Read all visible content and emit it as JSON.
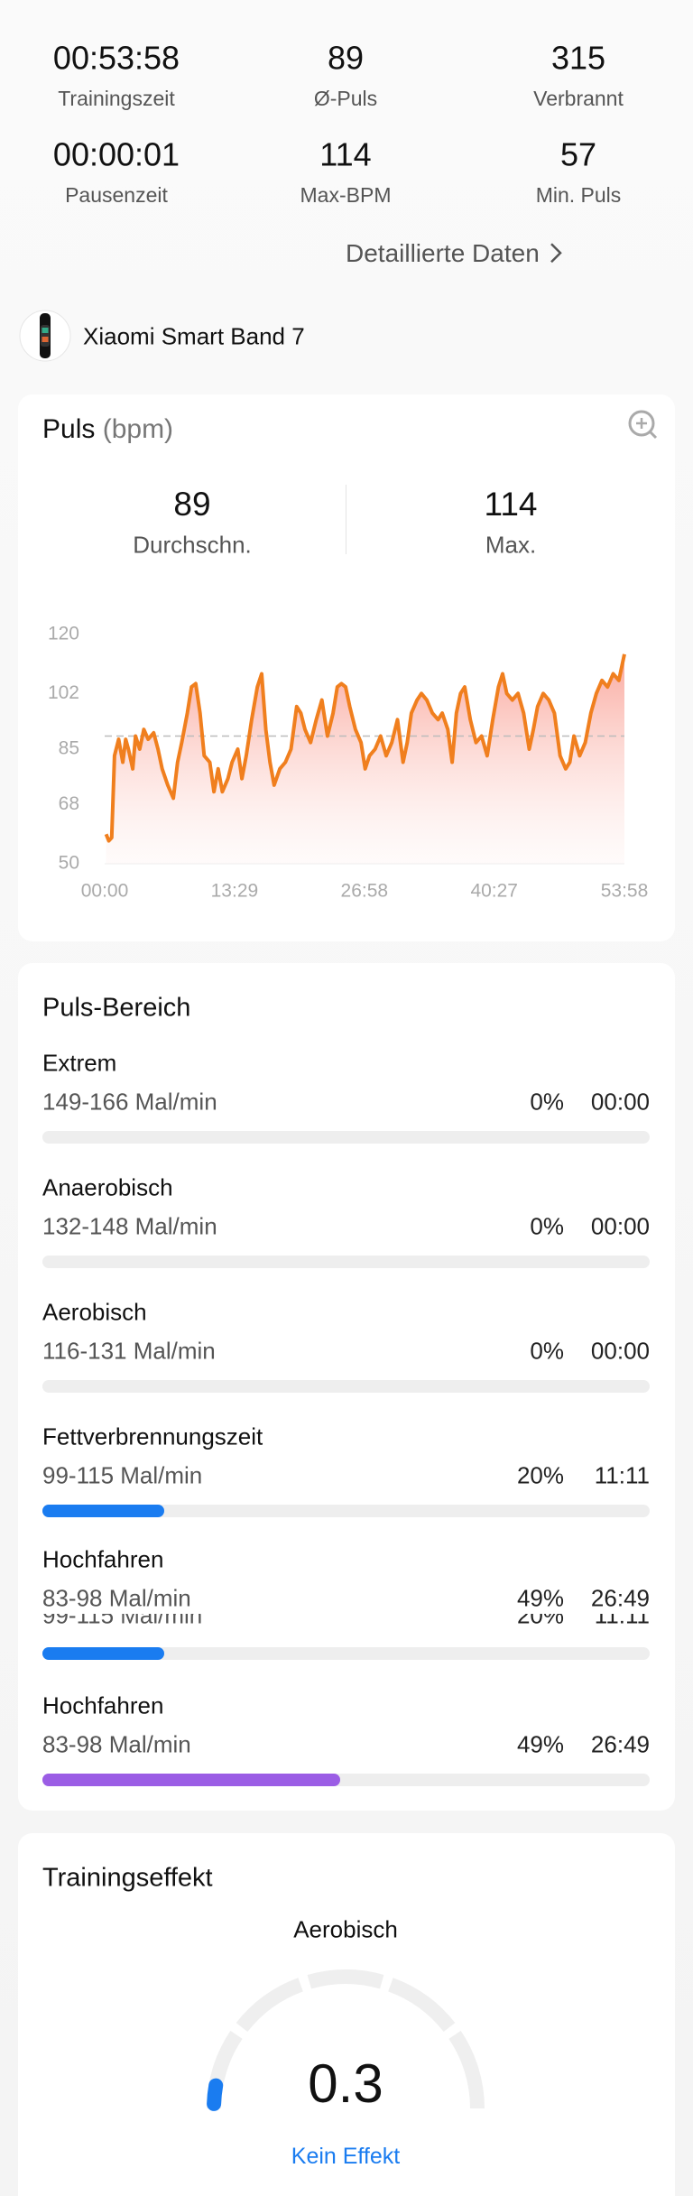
{
  "summary": {
    "items": [
      {
        "value": "00:53:58",
        "label": "Trainingszeit"
      },
      {
        "value": "89",
        "label": "Ø-Puls"
      },
      {
        "value": "315",
        "label": "Verbrannt"
      },
      {
        "value": "00:00:01",
        "label": "Pausenzeit"
      },
      {
        "value": "114",
        "label": "Max-BPM"
      },
      {
        "value": "57",
        "label": "Min. Puls"
      }
    ]
  },
  "details_link": "Detaillierte Daten",
  "device": "Xiaomi Smart Band 7",
  "heart_rate": {
    "title": "Puls",
    "unit": "(bpm)",
    "stats": [
      {
        "value": 89,
        "label": "Durchschn."
      },
      {
        "value": 114,
        "label": "Max."
      }
    ]
  },
  "chart_data": {
    "type": "line",
    "x": [
      9,
      26,
      44,
      61,
      87,
      113,
      131,
      148,
      175,
      192,
      218,
      244,
      271,
      305,
      332,
      358,
      393,
      428,
      454,
      480,
      515,
      541,
      567,
      594,
      620,
      655,
      681,
      707,
      733,
      768,
      794,
      829,
      855,
      882,
      916,
      951,
      978,
      1004,
      1030,
      1056,
      1091,
      1126,
      1161,
      1196,
      1222,
      1248,
      1283,
      1318,
      1353,
      1388,
      1423,
      1449,
      1475,
      1501,
      1527,
      1562,
      1597,
      1623,
      1650,
      1685,
      1719,
      1754,
      1789,
      1824,
      1859,
      1885,
      1911,
      1946,
      1973,
      2007,
      2042,
      2077,
      2103,
      2138,
      2165,
      2191,
      2217,
      2243,
      2278,
      2313,
      2348,
      2383,
      2418,
      2453,
      2479,
      2505,
      2540,
      2575,
      2610,
      2645,
      2671,
      2697,
      2732,
      2767,
      2802,
      2837,
      2872,
      2898,
      2924,
      2959,
      2994,
      3029,
      3063,
      3098,
      3133,
      3168,
      3203,
      3238
    ],
    "series": [
      {
        "color": "#f07f1e",
        "values": [
          59,
          57,
          58,
          83,
          88,
          81,
          88,
          85,
          79,
          89,
          85,
          91,
          88,
          90,
          85,
          79,
          74,
          70,
          81,
          87,
          96,
          104,
          105,
          96,
          83,
          81,
          72,
          79,
          72,
          76,
          81,
          85,
          76,
          83,
          94,
          104,
          108,
          91,
          81,
          74,
          79,
          81,
          85,
          98,
          96,
          91,
          87,
          94,
          100,
          89,
          96,
          104,
          105,
          104,
          98,
          91,
          87,
          79,
          83,
          85,
          89,
          83,
          87,
          94,
          81,
          87,
          96,
          100,
          102,
          100,
          96,
          94,
          96,
          91,
          81,
          96,
          102,
          104,
          94,
          87,
          89,
          83,
          94,
          104,
          108,
          102,
          100,
          102,
          96,
          85,
          91,
          98,
          102,
          100,
          96,
          83,
          79,
          81,
          89,
          83,
          87,
          96,
          102,
          106,
          104,
          108,
          106,
          114
        ]
      }
    ],
    "xlim": [
      0,
      3238
    ],
    "xticks": [
      {
        "value": 0,
        "label": "00:00"
      },
      {
        "value": 809,
        "label": "13:29"
      },
      {
        "value": 1618,
        "label": "26:58"
      },
      {
        "value": 2427,
        "label": "40:27"
      },
      {
        "value": 3238,
        "label": "53:58"
      }
    ],
    "ylim": [
      50,
      120
    ],
    "yticks": [
      50,
      68,
      85,
      102,
      120
    ]
  },
  "zones": {
    "title": "Puls-Bereich",
    "items": [
      {
        "name": "Extrem",
        "range": "149-166 Mal/min",
        "percent": 0,
        "percent_label": "0%",
        "time": "00:00",
        "color": "#1a7cf0"
      },
      {
        "name": "Anaerobisch",
        "range": "132-148 Mal/min",
        "percent": 0,
        "percent_label": "0%",
        "time": "00:00",
        "color": "#1a7cf0"
      },
      {
        "name": "Aerobisch",
        "range": "116-131 Mal/min",
        "percent": 0,
        "percent_label": "0%",
        "time": "00:00",
        "color": "#1a7cf0"
      },
      {
        "name": "Fettverbrennungszeit",
        "range": "99-115 Mal/min",
        "percent": 20,
        "percent_label": "20%",
        "time": "11:11",
        "color": "#1a7cf0"
      },
      {
        "name": "Hochfahren",
        "range": "83-98 Mal/min",
        "percent": 49,
        "percent_label": "49%",
        "time": "26:49",
        "color": "#9b5de5"
      }
    ]
  },
  "training_effect": {
    "title": "Trainingseffekt",
    "type": "Aerobisch",
    "value": "0.3",
    "verdict": "Kein Effekt"
  }
}
